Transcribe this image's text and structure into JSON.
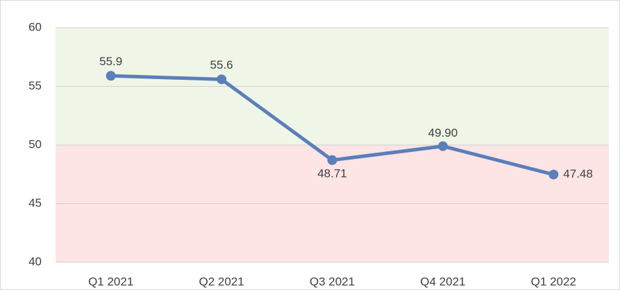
{
  "chart_data": {
    "type": "line",
    "categories": [
      "Q1 2021",
      "Q2 2021",
      "Q3 2021",
      "Q4 2021",
      "Q1 2022"
    ],
    "values": [
      55.9,
      55.6,
      48.71,
      49.9,
      47.48
    ],
    "value_labels": [
      "55.9",
      "55.6",
      "48.71",
      "49.90",
      "47.48"
    ],
    "color": "#5a7fb9",
    "ylim": [
      40,
      60
    ],
    "yticks": [
      40,
      45,
      50,
      55,
      60
    ],
    "grid": true,
    "bands": [
      {
        "from": 50,
        "to": 60,
        "color": "#eff6e8"
      },
      {
        "from": 40,
        "to": 50,
        "color": "#fde4e5"
      }
    ]
  }
}
